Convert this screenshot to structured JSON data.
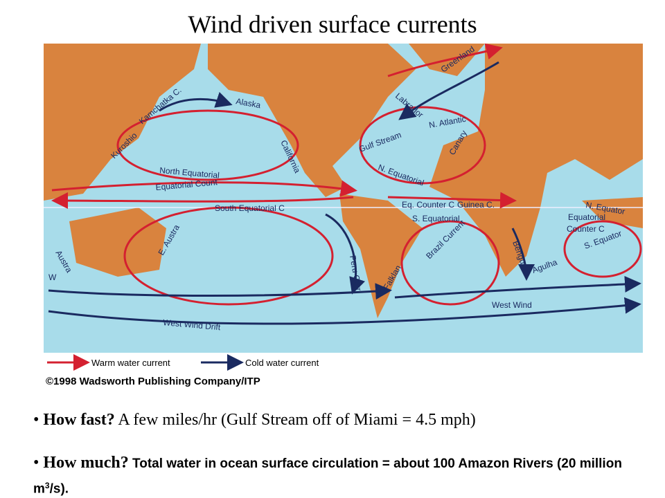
{
  "header": {
    "title": "Wind driven surface currents"
  },
  "map": {
    "labels": [
      "Greenland",
      "Labrador",
      "N. Atlantic",
      "Gulf Stream",
      "Canary",
      "N. Equatorial",
      "Kamchatka C.",
      "Alaska",
      "California",
      "Kuroshio",
      "North Equatorial",
      "Equatorial Count",
      "South Equatorial C",
      "E. Austra",
      "Peru Curr",
      "Eq. Counter C",
      "Guinea C.",
      "S. Equatorial",
      "Brazil Current",
      "Benguela",
      "N. Equator",
      "Equatorial",
      "Counter C",
      "S. Equator",
      "Agulha",
      "Falklan",
      "West Wind",
      "West Wind Drift",
      "Austra",
      "W"
    ],
    "legend": {
      "warm": "Warm water current",
      "cold": "Cold water current"
    },
    "credit": "©1998 Wadsworth Publishing Company/ITP"
  },
  "bullets": [
    {
      "lead": "How fast?",
      "text": " A few miles/hr  (Gulf Stream off of Miami = 4.5 mph)"
    },
    {
      "lead": "How much?",
      "text": " Total water in ocean surface circulation = about 100 Amazon Rivers (20 million m",
      "sup": "3",
      "tail": "/s)."
    }
  ]
}
